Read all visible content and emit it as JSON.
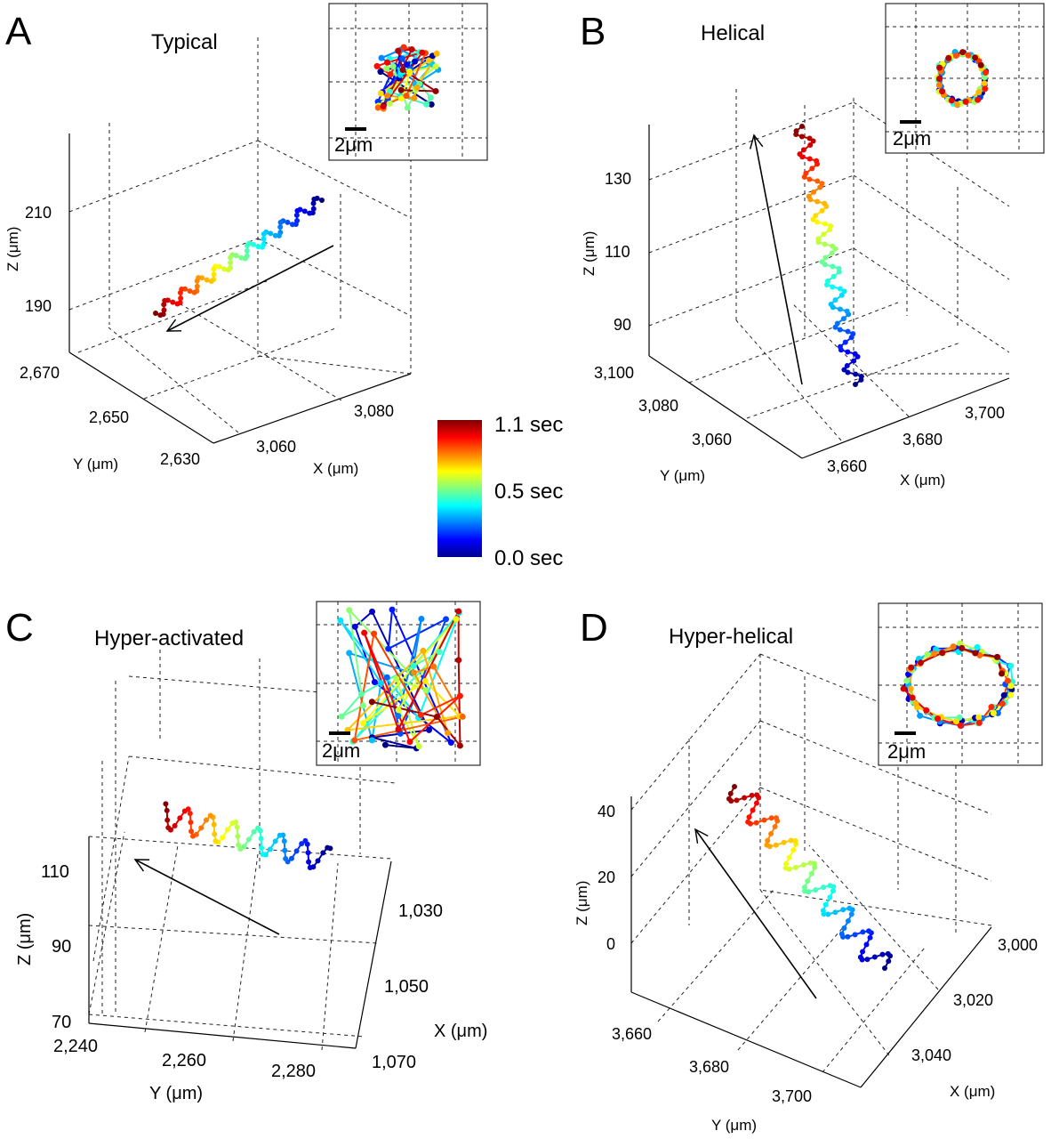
{
  "chart_data": [
    {
      "type": "line3d",
      "panel": "A",
      "title": "Typical",
      "xlabel": "X (μm)",
      "ylabel": "Y (μm)",
      "zlabel": "Z (μm)",
      "x_ticks": [
        "3,060",
        "3,080"
      ],
      "y_ticks": [
        "2,670",
        "2,650",
        "2,630"
      ],
      "z_ticks": [
        "210",
        "190"
      ],
      "inset_scale_label": "2μm",
      "trajectory_direction": "down-left"
    },
    {
      "type": "line3d",
      "panel": "B",
      "title": "Helical",
      "xlabel": "X (μm)",
      "ylabel": "Y (μm)",
      "zlabel": "Z (μm)",
      "x_ticks": [
        "3,660",
        "3,680",
        "3,700"
      ],
      "y_ticks": [
        "3,100",
        "3,080",
        "3,060"
      ],
      "z_ticks": [
        "130",
        "110",
        "90"
      ],
      "inset_scale_label": "2μm",
      "trajectory_direction": "up"
    },
    {
      "type": "line3d",
      "panel": "C",
      "title": "Hyper-activated",
      "xlabel": "X (μm)",
      "ylabel": "Y (μm)",
      "zlabel": "Z (μm)",
      "x_ticks": [
        "1,030",
        "1,050",
        "1,070"
      ],
      "y_ticks": [
        "2,240",
        "2,260",
        "2,280"
      ],
      "z_ticks": [
        "110",
        "90",
        "70"
      ],
      "inset_scale_label": "2μm",
      "trajectory_direction": "up-left"
    },
    {
      "type": "line3d",
      "panel": "D",
      "title": "Hyper-helical",
      "xlabel": "X (μm)",
      "ylabel": "Y (μm)",
      "zlabel": "Z (μm)",
      "x_ticks": [
        "3,000",
        "3,020",
        "3,040"
      ],
      "y_ticks": [
        "3,660",
        "3,680",
        "3,700"
      ],
      "z_ticks": [
        "40",
        "20",
        "0"
      ],
      "inset_scale_label": "2μm",
      "trajectory_direction": "up-left"
    }
  ],
  "colorbar": {
    "labels": [
      "1.1 sec",
      "0.5 sec",
      "0.0 sec"
    ],
    "range": [
      0.0,
      1.1
    ],
    "colormap": "jet"
  }
}
